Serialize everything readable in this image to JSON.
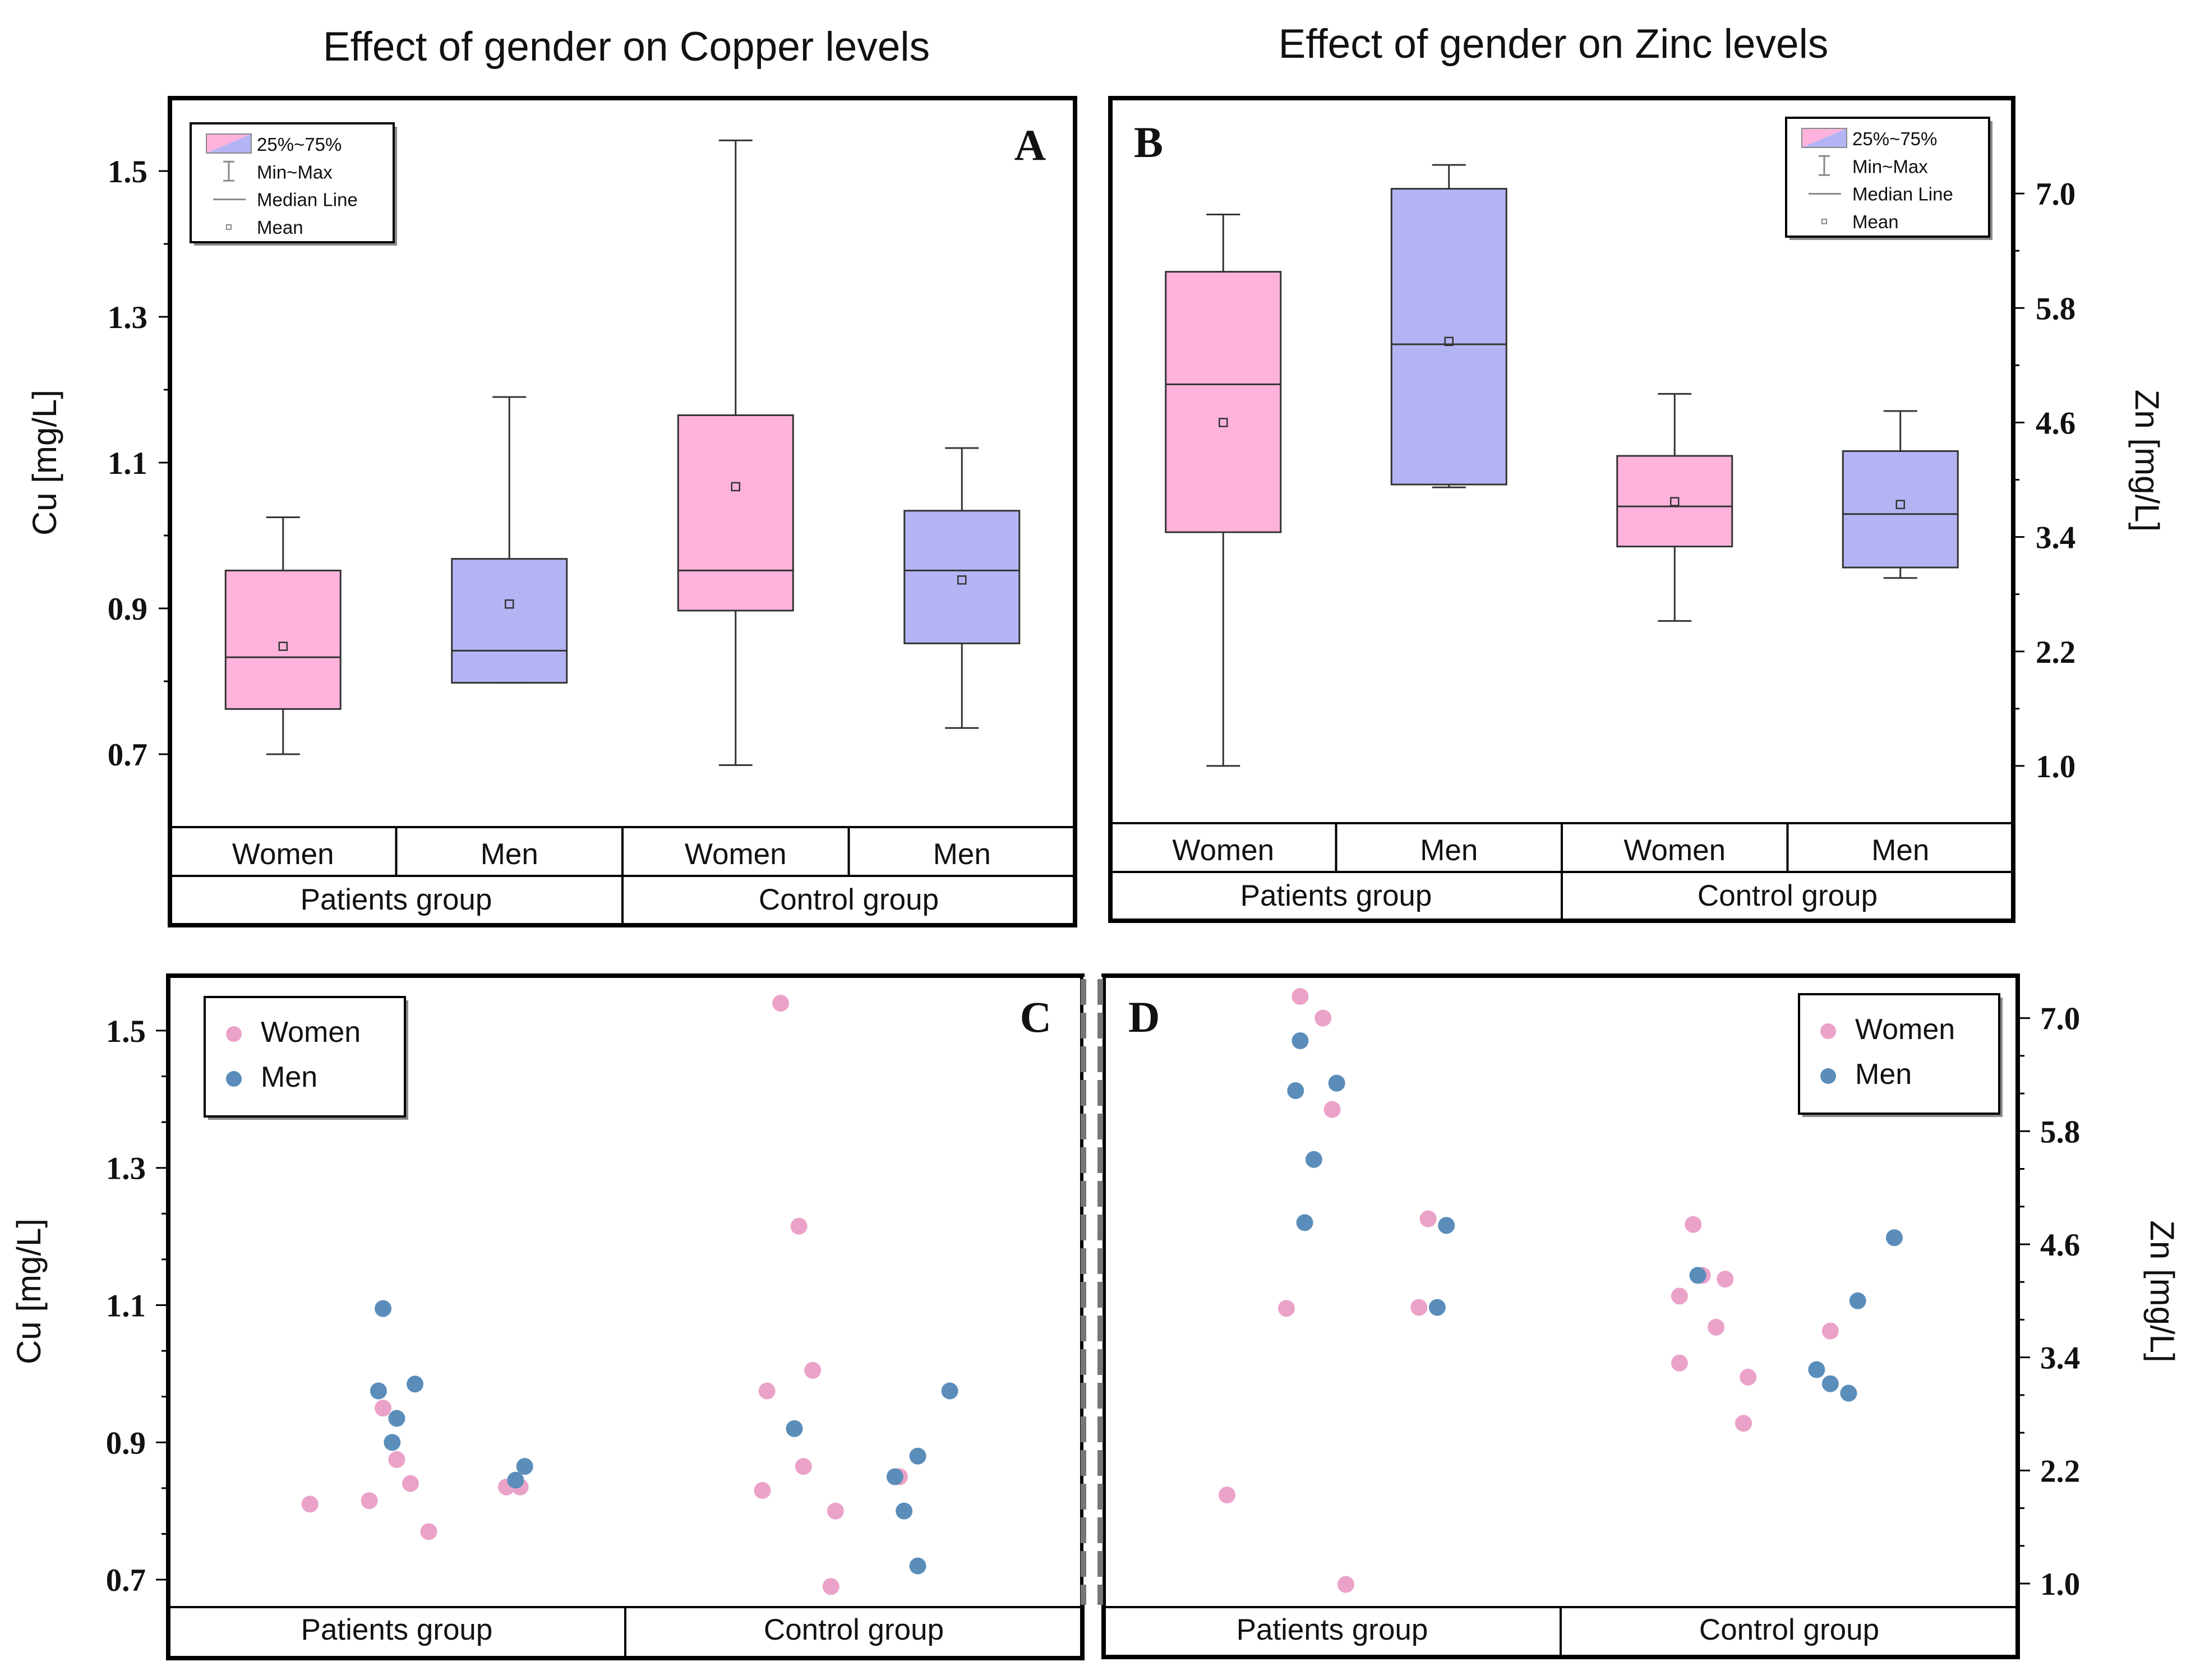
{
  "colors": {
    "women_box": "#ffb3dc",
    "men_box": "#b4b4f4",
    "women_point": "#eba2c9",
    "men_point": "#5a8dba",
    "frame": "#000000",
    "divider": "#777777"
  },
  "panel_titles": {
    "copper": "Effect of gender on Copper levels",
    "zinc": "Effect of gender on Zinc levels"
  },
  "chart_data": [
    {
      "id": "A",
      "type": "box",
      "letter": "A",
      "title": "Effect of gender on Copper levels",
      "ylabel": "Cu [mg/L]",
      "ylim": [
        0.6,
        1.6
      ],
      "yticks": [
        0.7,
        0.9,
        1.1,
        1.3,
        1.5
      ],
      "ytick_labels": [
        "0.7",
        "0.9",
        "1.1",
        "1.3",
        "1.5"
      ],
      "categories": [
        "Women",
        "Men",
        "Women",
        "Men"
      ],
      "groups": [
        "Patients group",
        "Control group"
      ],
      "legend": [
        "25%~75%",
        "Min~Max",
        "Median Line",
        "Mean"
      ],
      "boxes": [
        {
          "label": "Women",
          "group": "Patients group",
          "min": 0.7,
          "q1": 0.762,
          "median": 0.833,
          "q3": 0.952,
          "max": 1.025,
          "mean": 0.848
        },
        {
          "label": "Men",
          "group": "Patients group",
          "min": 0.798,
          "q1": 0.798,
          "median": 0.842,
          "q3": 0.968,
          "max": 1.19,
          "mean": 0.906
        },
        {
          "label": "Women",
          "group": "Control group",
          "min": 0.685,
          "q1": 0.897,
          "median": 0.952,
          "q3": 1.165,
          "max": 1.542,
          "mean": 1.067
        },
        {
          "label": "Men",
          "group": "Control group",
          "min": 0.736,
          "q1": 0.852,
          "median": 0.952,
          "q3": 1.034,
          "max": 1.12,
          "mean": 0.939
        }
      ]
    },
    {
      "id": "B",
      "type": "box",
      "letter": "B",
      "title": "Effect of gender on Zinc levels",
      "ylabel": "Zn [mg/L]",
      "ylim": [
        0.4,
        8.0
      ],
      "yticks": [
        1.0,
        2.2,
        3.4,
        4.6,
        5.8,
        7.0
      ],
      "ytick_labels": [
        "1.0",
        "2.2",
        "3.4",
        "4.6",
        "5.8",
        "7.0"
      ],
      "categories": [
        "Women",
        "Men",
        "Women",
        "Men"
      ],
      "groups": [
        "Patients group",
        "Control group"
      ],
      "legend": [
        "25%~75%",
        "Min~Max",
        "Median Line",
        "Mean"
      ],
      "boxes": [
        {
          "label": "Women",
          "group": "Patients group",
          "min": 1.0,
          "q1": 3.45,
          "median": 5.0,
          "q3": 6.18,
          "max": 6.78,
          "mean": 4.6
        },
        {
          "label": "Men",
          "group": "Patients group",
          "min": 3.92,
          "q1": 3.95,
          "median": 5.42,
          "q3": 7.05,
          "max": 7.3,
          "mean": 5.45
        },
        {
          "label": "Women",
          "group": "Control group",
          "min": 2.52,
          "q1": 3.3,
          "median": 3.72,
          "q3": 4.25,
          "max": 4.9,
          "mean": 3.77
        },
        {
          "label": "Men",
          "group": "Control group",
          "min": 2.97,
          "q1": 3.08,
          "median": 3.64,
          "q3": 4.3,
          "max": 4.72,
          "mean": 3.74
        }
      ]
    },
    {
      "id": "C",
      "type": "scatter",
      "letter": "C",
      "ylabel": "Cu [mg/L]",
      "ylim": [
        0.66,
        1.58
      ],
      "yticks": [
        0.7,
        0.9,
        1.1,
        1.3,
        1.5
      ],
      "ytick_labels": [
        "0.7",
        "0.9",
        "1.1",
        "1.3",
        "1.5"
      ],
      "groups": [
        "Patients group",
        "Control group"
      ],
      "series": [
        {
          "name": "Women",
          "points": [
            [
              0.31,
              0.81
            ],
            [
              0.44,
              0.815
            ],
            [
              0.47,
              0.95
            ],
            [
              0.5,
              0.875
            ],
            [
              0.53,
              0.84
            ],
            [
              0.57,
              0.77
            ],
            [
              0.74,
              0.835
            ],
            [
              0.77,
              0.835
            ],
            [
              1.3,
              0.83
            ],
            [
              1.31,
              0.975
            ],
            [
              1.34,
              1.54
            ],
            [
              1.38,
              1.215
            ],
            [
              1.39,
              0.865
            ],
            [
              1.41,
              1.005
            ],
            [
              1.45,
              0.69
            ],
            [
              1.46,
              0.8
            ],
            [
              1.6,
              0.85
            ]
          ]
        },
        {
          "name": "Men",
          "points": [
            [
              0.46,
              0.975
            ],
            [
              0.47,
              1.095
            ],
            [
              0.49,
              0.9
            ],
            [
              0.5,
              0.935
            ],
            [
              0.54,
              0.985
            ],
            [
              0.76,
              0.845
            ],
            [
              0.78,
              0.865
            ],
            [
              1.37,
              0.92
            ],
            [
              1.59,
              0.85
            ],
            [
              1.61,
              0.8
            ],
            [
              1.64,
              0.72
            ],
            [
              1.64,
              0.88
            ],
            [
              1.71,
              0.975
            ]
          ]
        }
      ]
    },
    {
      "id": "D",
      "type": "scatter",
      "letter": "D",
      "ylabel": "Zn [mg/L]",
      "ylim": [
        0.75,
        7.45
      ],
      "yticks": [
        1.0,
        2.2,
        3.4,
        4.6,
        5.8,
        7.0
      ],
      "ytick_labels": [
        "1.0",
        "2.2",
        "3.4",
        "4.6",
        "5.8",
        "7.0"
      ],
      "groups": [
        "Patients group",
        "Control group"
      ],
      "series": [
        {
          "name": "Women",
          "points": [
            [
              0.27,
              1.94
            ],
            [
              0.4,
              3.92
            ],
            [
              0.43,
              7.23
            ],
            [
              0.48,
              7.0
            ],
            [
              0.5,
              6.03
            ],
            [
              0.53,
              0.99
            ],
            [
              0.69,
              3.93
            ],
            [
              0.71,
              4.87
            ],
            [
              1.26,
              3.34
            ],
            [
              1.26,
              4.05
            ],
            [
              1.29,
              4.81
            ],
            [
              1.31,
              4.27
            ],
            [
              1.34,
              3.72
            ],
            [
              1.36,
              4.23
            ],
            [
              1.4,
              2.7
            ],
            [
              1.41,
              3.19
            ],
            [
              1.59,
              3.68
            ]
          ]
        },
        {
          "name": "Men",
          "points": [
            [
              0.42,
              6.23
            ],
            [
              0.43,
              6.76
            ],
            [
              0.44,
              4.83
            ],
            [
              0.46,
              5.5
            ],
            [
              0.51,
              6.31
            ],
            [
              0.73,
              3.93
            ],
            [
              0.75,
              4.8
            ],
            [
              1.3,
              4.27
            ],
            [
              1.56,
              3.27
            ],
            [
              1.59,
              3.12
            ],
            [
              1.63,
              3.02
            ],
            [
              1.65,
              4.0
            ],
            [
              1.73,
              4.67
            ]
          ]
        }
      ]
    }
  ]
}
